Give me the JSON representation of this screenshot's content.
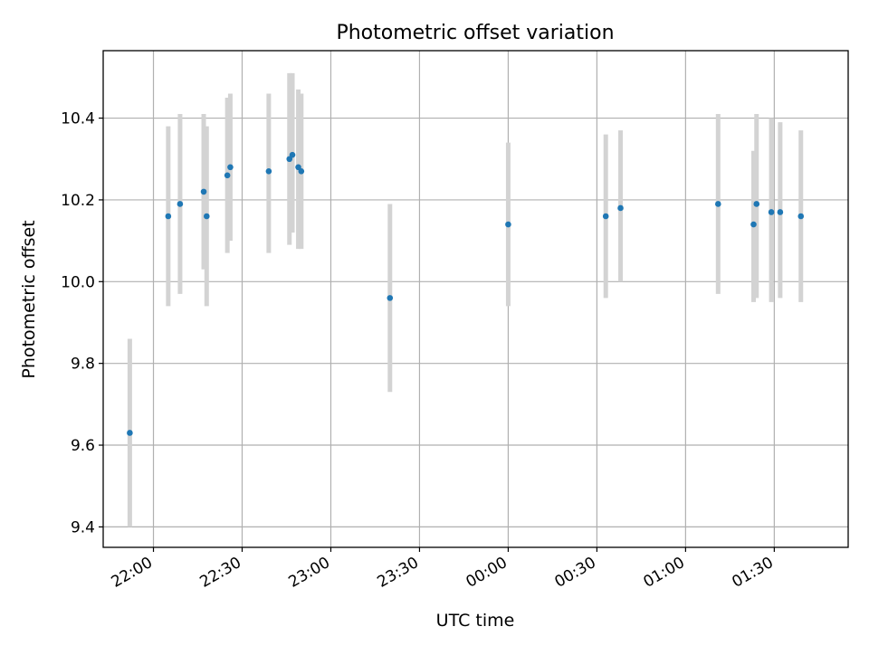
{
  "chart_data": {
    "type": "scatter",
    "title": "Photometric offset variation",
    "xlabel": "UTC time",
    "ylabel": "Photometric offset",
    "x_unit": "UTC time of day (night crossing midnight)",
    "xlim": [
      "21:43",
      "01:55"
    ],
    "ylim": [
      9.35,
      10.565
    ],
    "x_ticks": [
      "22:00",
      "22:30",
      "23:00",
      "23:30",
      "00:00",
      "00:30",
      "01:00",
      "01:30"
    ],
    "y_ticks": [
      "9.4",
      "9.6",
      "9.8",
      "10.0",
      "10.2",
      "10.4"
    ],
    "grid": true,
    "colors": {
      "point": "#1f77b4",
      "errorbar": "#d3d3d3",
      "grid": "#b0b0b0"
    },
    "series": [
      {
        "points": [
          {
            "x": "21:52",
            "y": 9.63,
            "ylo": 9.4,
            "yhi": 9.86
          },
          {
            "x": "22:05",
            "y": 10.16,
            "ylo": 9.94,
            "yhi": 10.38
          },
          {
            "x": "22:09",
            "y": 10.19,
            "ylo": 9.97,
            "yhi": 10.41
          },
          {
            "x": "22:17",
            "y": 10.22,
            "ylo": 10.03,
            "yhi": 10.41
          },
          {
            "x": "22:18",
            "y": 10.16,
            "ylo": 9.94,
            "yhi": 10.38
          },
          {
            "x": "22:25",
            "y": 10.26,
            "ylo": 10.07,
            "yhi": 10.45
          },
          {
            "x": "22:26",
            "y": 10.28,
            "ylo": 10.1,
            "yhi": 10.46
          },
          {
            "x": "22:39",
            "y": 10.27,
            "ylo": 10.07,
            "yhi": 10.46
          },
          {
            "x": "22:46",
            "y": 10.3,
            "ylo": 10.09,
            "yhi": 10.51
          },
          {
            "x": "22:47",
            "y": 10.31,
            "ylo": 10.12,
            "yhi": 10.51
          },
          {
            "x": "22:49",
            "y": 10.28,
            "ylo": 10.08,
            "yhi": 10.47
          },
          {
            "x": "22:50",
            "y": 10.27,
            "ylo": 10.08,
            "yhi": 10.46
          },
          {
            "x": "23:20",
            "y": 9.96,
            "ylo": 9.73,
            "yhi": 10.19
          },
          {
            "x": "00:00",
            "y": 10.14,
            "ylo": 9.94,
            "yhi": 10.34
          },
          {
            "x": "00:33",
            "y": 10.16,
            "ylo": 9.96,
            "yhi": 10.36
          },
          {
            "x": "00:38",
            "y": 10.18,
            "ylo": 10.0,
            "yhi": 10.37
          },
          {
            "x": "01:11",
            "y": 10.19,
            "ylo": 9.97,
            "yhi": 10.41
          },
          {
            "x": "01:23",
            "y": 10.14,
            "ylo": 9.95,
            "yhi": 10.32
          },
          {
            "x": "01:24",
            "y": 10.19,
            "ylo": 9.96,
            "yhi": 10.41
          },
          {
            "x": "01:29",
            "y": 10.17,
            "ylo": 9.95,
            "yhi": 10.4
          },
          {
            "x": "01:32",
            "y": 10.17,
            "ylo": 9.96,
            "yhi": 10.39
          },
          {
            "x": "01:39",
            "y": 10.16,
            "ylo": 9.95,
            "yhi": 10.37
          }
        ]
      }
    ]
  }
}
